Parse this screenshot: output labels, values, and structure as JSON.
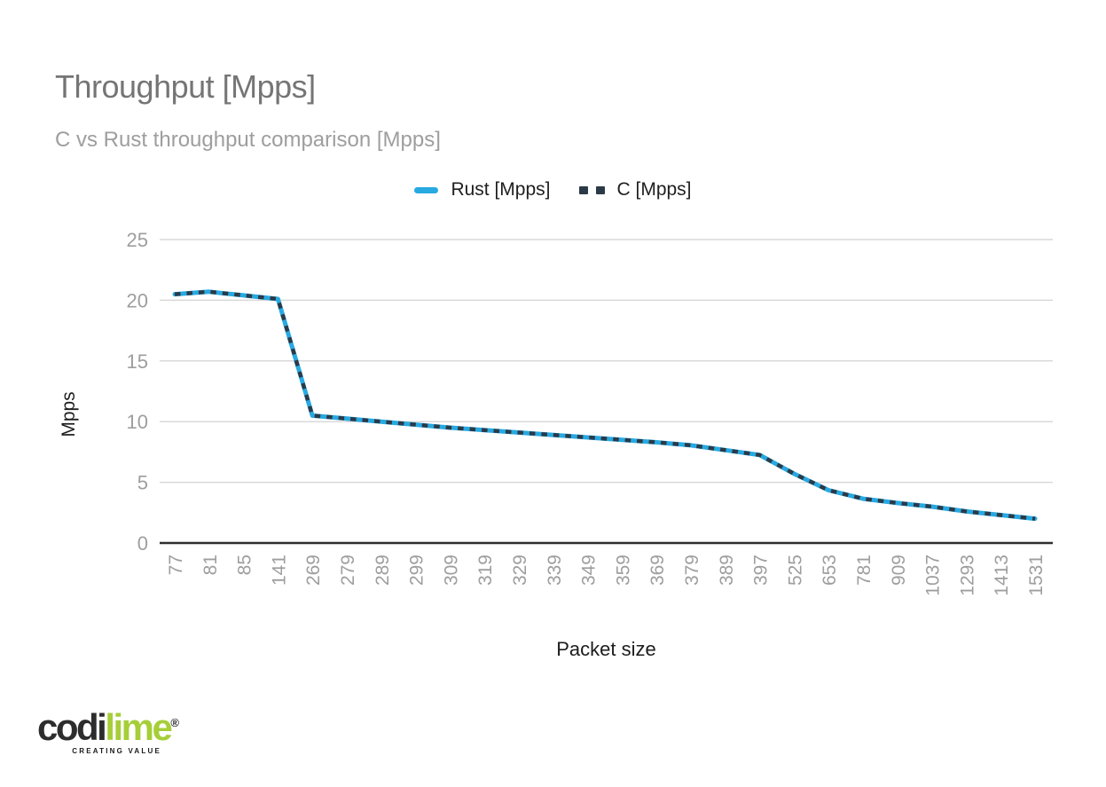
{
  "header": {
    "title": "Throughput [Mpps]",
    "subtitle": "C vs Rust throughput comparison [Mpps]"
  },
  "legend": {
    "items": [
      {
        "label": "Rust [Mpps]",
        "color": "#27a9e1",
        "style": "solid"
      },
      {
        "label": "C [Mpps]",
        "color": "#2b3a48",
        "style": "dashed"
      }
    ]
  },
  "chart_data": {
    "type": "line",
    "title": "Throughput [Mpps]",
    "subtitle": "C vs Rust throughput comparison [Mpps]",
    "xlabel": "Packet size",
    "ylabel": "Mpps",
    "ylim": [
      0,
      25
    ],
    "yticks": [
      0,
      5,
      10,
      15,
      20,
      25
    ],
    "grid": true,
    "legend_position": "top",
    "categories": [
      77,
      81,
      85,
      141,
      269,
      279,
      289,
      299,
      309,
      319,
      329,
      339,
      349,
      359,
      369,
      379,
      389,
      397,
      525,
      653,
      781,
      909,
      1037,
      1293,
      1413,
      1531
    ],
    "series": [
      {
        "name": "Rust [Mpps]",
        "color": "#27a9e1",
        "line_style": "solid",
        "values": [
          20.5,
          20.7,
          20.4,
          20.1,
          10.5,
          10.25,
          10.0,
          9.75,
          9.5,
          9.3,
          9.1,
          8.9,
          8.7,
          8.5,
          8.3,
          8.05,
          7.65,
          7.25,
          5.7,
          4.35,
          3.65,
          3.3,
          3.0,
          2.6,
          2.3,
          2.0
        ]
      },
      {
        "name": "C [Mpps]",
        "color": "#2b3a48",
        "line_style": "dashed",
        "values": [
          20.5,
          20.7,
          20.4,
          20.1,
          10.5,
          10.25,
          10.0,
          9.75,
          9.5,
          9.3,
          9.1,
          8.9,
          8.7,
          8.5,
          8.3,
          8.05,
          7.65,
          7.25,
          5.7,
          4.35,
          3.65,
          3.3,
          3.0,
          2.6,
          2.3,
          2.0
        ]
      }
    ]
  },
  "footer": {
    "logo_part1": "codi",
    "logo_part2": "lime",
    "logo_registered": "®",
    "logo_tagline": "CREATING VALUE",
    "logo_lime_color": "#a6ce39"
  },
  "colors": {
    "title": "#757575",
    "subtitle": "#9e9e9e",
    "tick_label": "#9e9e9e",
    "gridline": "#d9d9d9",
    "axis_line": "#2e2e2e",
    "legend_text": "#1f1f1f",
    "rust_line": "#27a9e1",
    "c_line": "#2b3a48"
  }
}
